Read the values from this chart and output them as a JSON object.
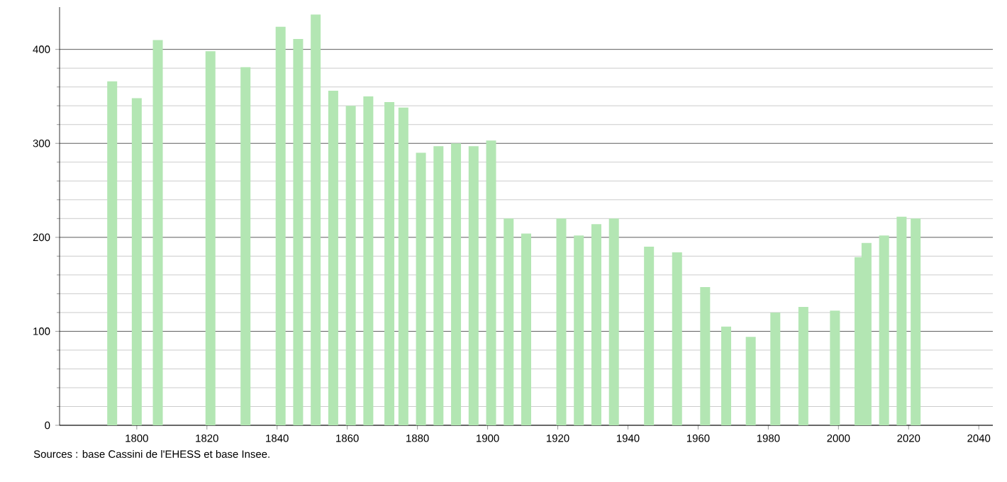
{
  "chart_data": {
    "type": "bar",
    "x": [
      1793,
      1800,
      1806,
      1821,
      1831,
      1841,
      1846,
      1851,
      1856,
      1861,
      1866,
      1872,
      1876,
      1881,
      1886,
      1891,
      1896,
      1901,
      1906,
      1911,
      1921,
      1926,
      1931,
      1936,
      1946,
      1954,
      1962,
      1968,
      1975,
      1982,
      1990,
      1999,
      2006,
      2008,
      2013,
      2018,
      2022
    ],
    "values": [
      366,
      348,
      410,
      398,
      381,
      424,
      411,
      437,
      356,
      340,
      350,
      344,
      338,
      290,
      297,
      300,
      297,
      303,
      220,
      204,
      220,
      202,
      214,
      220,
      190,
      184,
      147,
      105,
      94,
      120,
      126,
      122,
      179,
      194,
      202,
      222,
      220
    ],
    "color": "#b3e6b3",
    "xlim": [
      1778,
      2044
    ],
    "xticks": [
      1800,
      1820,
      1840,
      1860,
      1880,
      1900,
      1920,
      1940,
      1960,
      1980,
      2000,
      2020,
      2040
    ],
    "ylim": [
      0,
      445
    ],
    "yticks": [
      0,
      100,
      200,
      300,
      400
    ],
    "grid": "y",
    "annotations": [
      "Sources : base Cassini de l'EHESS et base Insee."
    ]
  }
}
